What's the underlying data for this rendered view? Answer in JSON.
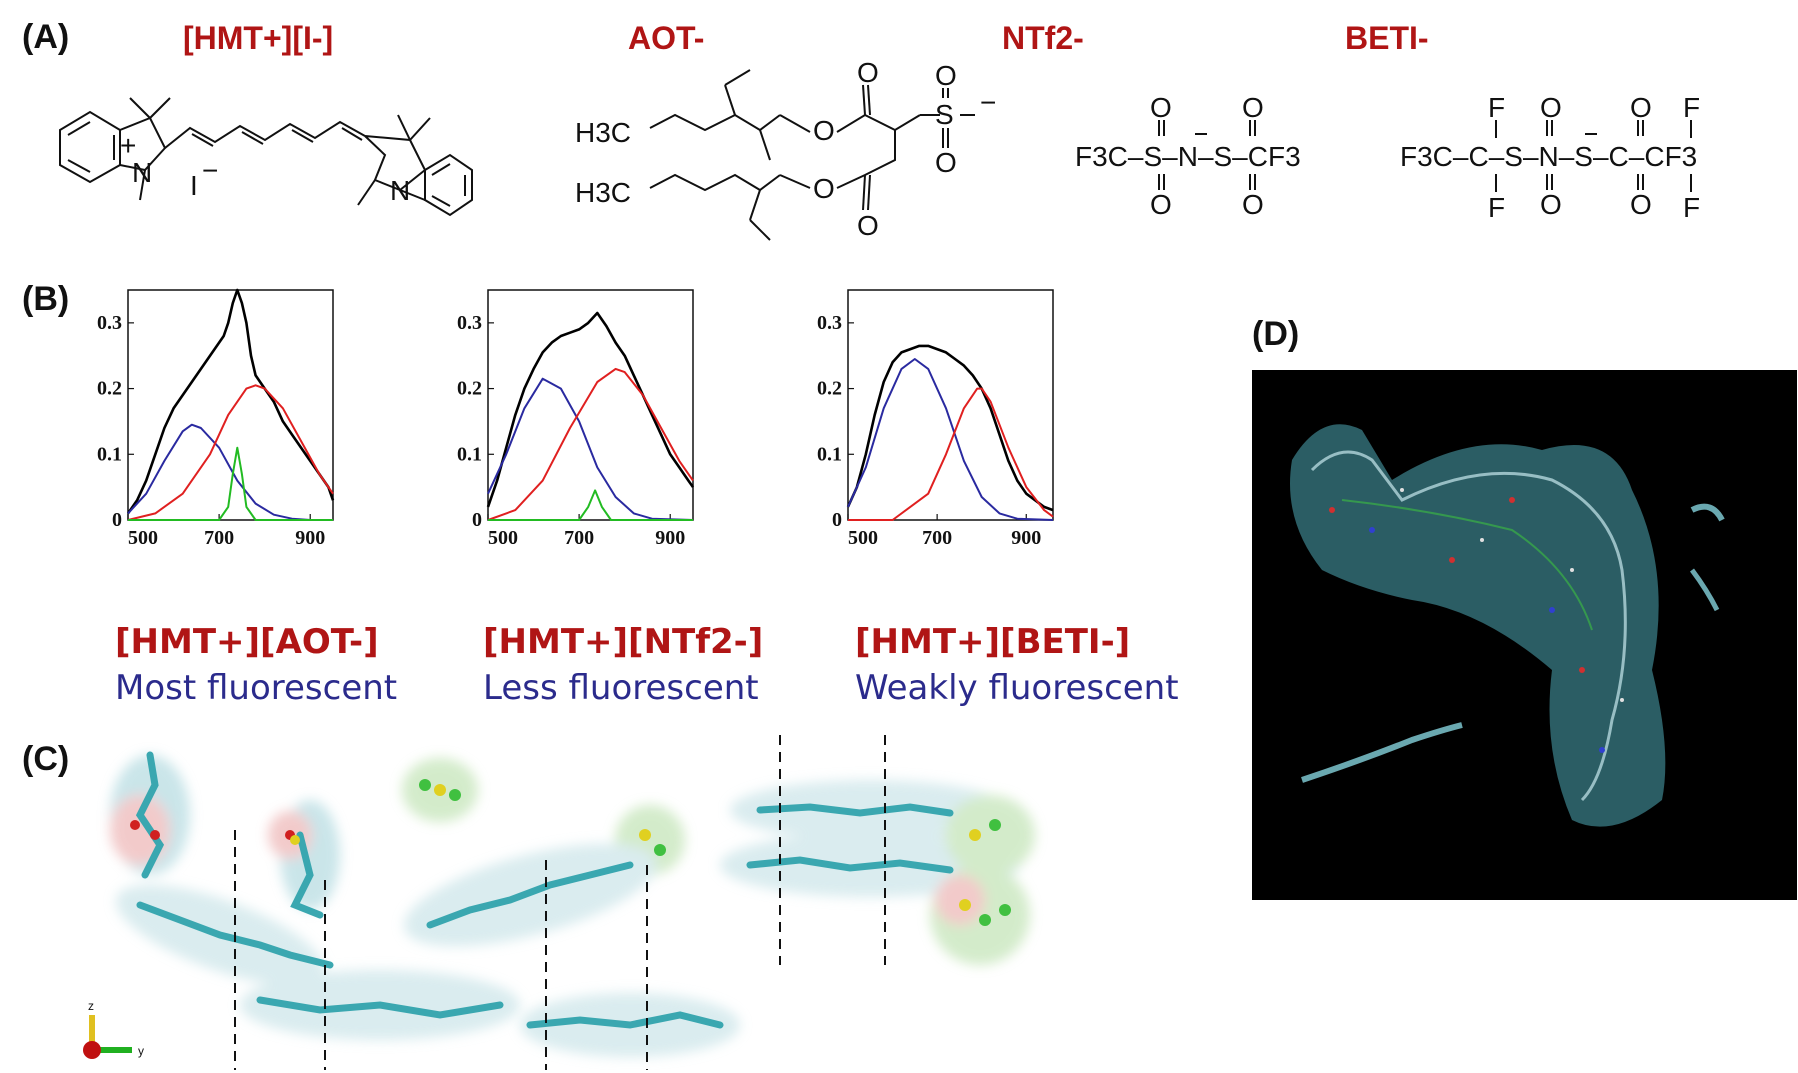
{
  "panels": {
    "a": {
      "label": "(A)",
      "structures": [
        {
          "title": "[HMT+][I-]",
          "labels": [
            "N",
            "N",
            "+",
            "I",
            "−"
          ]
        },
        {
          "title": "AOT-",
          "labels": [
            "H3C",
            "H3C",
            "O",
            "O",
            "O",
            "O",
            "S",
            "O",
            "O",
            "−"
          ]
        },
        {
          "title": "NTf2-",
          "formula": "F3C–S–N–S–CF3"
        },
        {
          "title": "BETI-",
          "formula": "F3C–C–S–N–S–C–CF3"
        }
      ]
    },
    "b": {
      "label": "(B)",
      "salts": [
        {
          "name": "[HMT+][AOT-]",
          "desc": "Most fluorescent"
        },
        {
          "name": "[HMT+][NTf2-]",
          "desc": "Less fluorescent"
        },
        {
          "name": "[HMT+][BETI-]",
          "desc": "Weakly fluorescent"
        }
      ]
    },
    "c": {
      "label": "(C)",
      "axis_z": "z",
      "axis_y": "y"
    },
    "d": {
      "label": "(D)"
    }
  },
  "colors": {
    "title_red": "#b01515",
    "desc_blue": "#2b2b8c",
    "total": "#000000",
    "blue_band": "#2a2aa0",
    "red_band": "#e02020",
    "green_band": "#22bb22",
    "sim_bg": "#000000"
  },
  "chart_data": [
    {
      "type": "line",
      "title": "",
      "xlabel": "",
      "ylabel": "",
      "xlim": [
        500,
        950
      ],
      "ylim": [
        0,
        0.35
      ],
      "xticks": [
        "500",
        "700",
        "900"
      ],
      "yticks": [
        "0",
        "0.1",
        "0.2",
        "0.3"
      ],
      "series": [
        {
          "color": "#000000",
          "x": [
            500,
            520,
            540,
            560,
            580,
            600,
            620,
            640,
            660,
            680,
            700,
            710,
            720,
            730,
            740,
            750,
            760,
            770,
            780,
            800,
            820,
            840,
            860,
            880,
            900,
            920,
            940,
            950
          ],
          "y": [
            0.01,
            0.03,
            0.06,
            0.1,
            0.14,
            0.17,
            0.19,
            0.21,
            0.23,
            0.25,
            0.27,
            0.28,
            0.3,
            0.33,
            0.35,
            0.33,
            0.3,
            0.25,
            0.22,
            0.2,
            0.18,
            0.15,
            0.13,
            0.11,
            0.09,
            0.07,
            0.05,
            0.03
          ]
        },
        {
          "color": "#2a2aa0",
          "x": [
            500,
            540,
            580,
            620,
            640,
            660,
            700,
            740,
            780,
            820,
            860,
            900,
            950
          ],
          "y": [
            0.01,
            0.04,
            0.09,
            0.135,
            0.145,
            0.14,
            0.11,
            0.06,
            0.025,
            0.008,
            0.002,
            0.0,
            0.0
          ]
        },
        {
          "color": "#e02020",
          "x": [
            500,
            560,
            620,
            680,
            720,
            760,
            780,
            800,
            840,
            880,
            920,
            950
          ],
          "y": [
            0.0,
            0.01,
            0.04,
            0.1,
            0.16,
            0.2,
            0.205,
            0.2,
            0.17,
            0.12,
            0.07,
            0.04
          ]
        },
        {
          "color": "#22bb22",
          "x": [
            500,
            700,
            720,
            730,
            740,
            750,
            760,
            780,
            950
          ],
          "y": [
            0,
            0,
            0.02,
            0.07,
            0.11,
            0.07,
            0.02,
            0,
            0
          ]
        }
      ]
    },
    {
      "type": "line",
      "title": "",
      "xlabel": "",
      "ylabel": "",
      "xlim": [
        500,
        950
      ],
      "ylim": [
        0,
        0.35
      ],
      "xticks": [
        "500",
        "700",
        "900"
      ],
      "yticks": [
        "0",
        "0.1",
        "0.2",
        "0.3"
      ],
      "series": [
        {
          "color": "#000000",
          "x": [
            500,
            520,
            540,
            560,
            580,
            600,
            620,
            640,
            660,
            680,
            700,
            720,
            740,
            760,
            780,
            800,
            820,
            840,
            860,
            880,
            900,
            920,
            940,
            950
          ],
          "y": [
            0.02,
            0.06,
            0.11,
            0.16,
            0.2,
            0.23,
            0.255,
            0.27,
            0.28,
            0.285,
            0.29,
            0.3,
            0.315,
            0.295,
            0.27,
            0.25,
            0.22,
            0.19,
            0.16,
            0.13,
            0.1,
            0.08,
            0.06,
            0.05
          ]
        },
        {
          "color": "#2a2aa0",
          "x": [
            500,
            540,
            580,
            620,
            660,
            700,
            740,
            780,
            820,
            860,
            950
          ],
          "y": [
            0.04,
            0.1,
            0.17,
            0.215,
            0.2,
            0.15,
            0.08,
            0.035,
            0.01,
            0.002,
            0.0
          ]
        },
        {
          "color": "#e02020",
          "x": [
            500,
            560,
            620,
            680,
            740,
            780,
            800,
            840,
            880,
            920,
            950
          ],
          "y": [
            0.0,
            0.015,
            0.06,
            0.14,
            0.21,
            0.23,
            0.225,
            0.19,
            0.14,
            0.09,
            0.06
          ]
        },
        {
          "color": "#22bb22",
          "x": [
            500,
            700,
            720,
            735,
            750,
            770,
            950
          ],
          "y": [
            0,
            0,
            0.02,
            0.045,
            0.02,
            0,
            0
          ]
        }
      ]
    },
    {
      "type": "line",
      "title": "",
      "xlabel": "",
      "ylabel": "",
      "xlim": [
        500,
        960
      ],
      "ylim": [
        0,
        0.35
      ],
      "xticks": [
        "500",
        "700",
        "900"
      ],
      "yticks": [
        "0",
        "0.1",
        "0.2",
        "0.3"
      ],
      "series": [
        {
          "color": "#000000",
          "x": [
            500,
            520,
            540,
            560,
            580,
            600,
            620,
            640,
            660,
            680,
            700,
            720,
            740,
            760,
            780,
            800,
            820,
            840,
            860,
            880,
            900,
            920,
            940,
            960
          ],
          "y": [
            0.02,
            0.05,
            0.1,
            0.16,
            0.21,
            0.24,
            0.255,
            0.26,
            0.265,
            0.265,
            0.26,
            0.255,
            0.245,
            0.235,
            0.22,
            0.2,
            0.17,
            0.13,
            0.09,
            0.06,
            0.04,
            0.03,
            0.02,
            0.015
          ]
        },
        {
          "color": "#2a2aa0",
          "x": [
            500,
            540,
            580,
            620,
            650,
            680,
            720,
            760,
            800,
            840,
            880,
            960
          ],
          "y": [
            0.02,
            0.08,
            0.17,
            0.23,
            0.245,
            0.23,
            0.17,
            0.09,
            0.035,
            0.01,
            0.002,
            0.0
          ]
        },
        {
          "color": "#e02020",
          "x": [
            500,
            600,
            680,
            720,
            760,
            790,
            800,
            820,
            860,
            900,
            940,
            960
          ],
          "y": [
            0.0,
            0.0,
            0.04,
            0.1,
            0.17,
            0.2,
            0.2,
            0.18,
            0.11,
            0.05,
            0.015,
            0.005
          ]
        }
      ]
    }
  ]
}
